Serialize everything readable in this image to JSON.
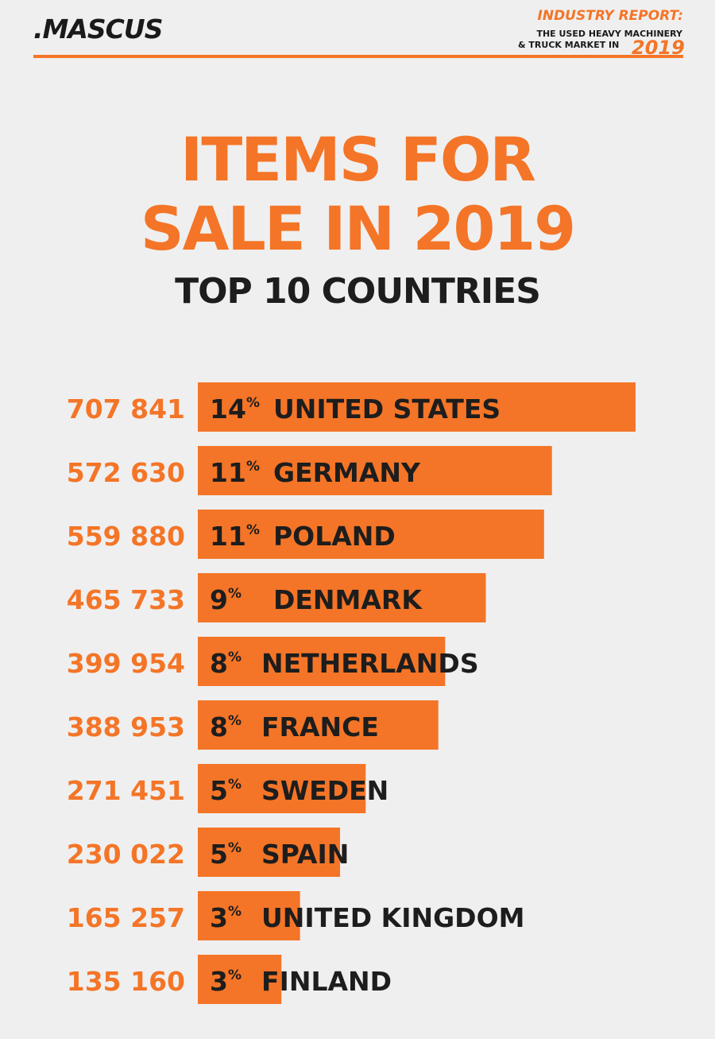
{
  "header": {
    "brand": ".MASCUS",
    "report_title": "INDUSTRY REPORT:",
    "report_subtitle_line1": "THE USED HEAVY MACHINERY",
    "report_subtitle_line2": "& TRUCK MARKET IN",
    "report_year": "2019",
    "accent_color": "#f47527",
    "text_color": "#1a1a1a"
  },
  "title_line1": "ITEMS FOR",
  "title_line2": "SALE IN 2019",
  "subtitle": "TOP 10 COUNTRIES",
  "chart_data": {
    "type": "bar",
    "orientation": "horizontal",
    "title": "ITEMS FOR SALE IN 2019",
    "subtitle": "TOP 10 COUNTRIES",
    "bar_color": "#f47527",
    "categories": [
      "UNITED STATES",
      "GERMANY",
      "POLAND",
      "DENMARK",
      "NETHERLANDS",
      "FRANCE",
      "SWEDEN",
      "SPAIN",
      "UNITED KINGDOM",
      "FINLAND"
    ],
    "values": [
      707841,
      572630,
      559880,
      465733,
      399954,
      388953,
      271451,
      230022,
      165257,
      135160
    ],
    "value_labels": [
      "707 841",
      "572 630",
      "559 880",
      "465 733",
      "399 954",
      "388 953",
      "271 451",
      "230 022",
      "165 257",
      "135 160"
    ],
    "percentages": [
      14,
      11,
      11,
      9,
      8,
      8,
      5,
      5,
      3,
      3
    ],
    "percent_sign": "%"
  }
}
